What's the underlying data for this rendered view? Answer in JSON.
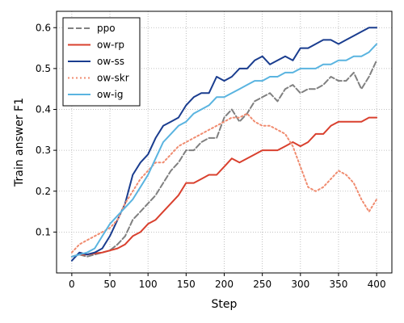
{
  "chart_data": {
    "type": "line",
    "title": "",
    "xlabel": "Step",
    "ylabel": "Train answer F1",
    "xlim": [
      -20,
      420
    ],
    "ylim": [
      0.0,
      0.64
    ],
    "xticks": [
      0,
      50,
      100,
      150,
      200,
      250,
      300,
      350,
      400
    ],
    "yticks": [
      0.1,
      0.2,
      0.3,
      0.4,
      0.5,
      0.6
    ],
    "grid": true,
    "legend_position": "top-left",
    "series": [
      {
        "name": "ppo",
        "color": "#808080",
        "style": "dashed",
        "x": [
          0,
          10,
          20,
          30,
          40,
          50,
          60,
          70,
          80,
          90,
          100,
          110,
          120,
          130,
          140,
          150,
          160,
          170,
          180,
          190,
          200,
          210,
          220,
          230,
          240,
          250,
          260,
          270,
          280,
          290,
          300,
          310,
          320,
          330,
          340,
          350,
          360,
          370,
          380,
          390,
          400
        ],
        "y": [
          0.04,
          0.045,
          0.04,
          0.045,
          0.05,
          0.055,
          0.07,
          0.09,
          0.13,
          0.15,
          0.17,
          0.19,
          0.22,
          0.25,
          0.27,
          0.3,
          0.3,
          0.32,
          0.33,
          0.33,
          0.38,
          0.4,
          0.37,
          0.39,
          0.42,
          0.43,
          0.44,
          0.42,
          0.45,
          0.46,
          0.44,
          0.45,
          0.45,
          0.46,
          0.48,
          0.47,
          0.47,
          0.49,
          0.45,
          0.48,
          0.52
        ]
      },
      {
        "name": "ow-rp",
        "color": "#d9402e",
        "style": "solid",
        "x": [
          0,
          10,
          20,
          30,
          40,
          50,
          60,
          70,
          80,
          90,
          100,
          110,
          120,
          130,
          140,
          150,
          160,
          170,
          180,
          190,
          200,
          210,
          220,
          230,
          240,
          250,
          260,
          270,
          280,
          290,
          300,
          310,
          320,
          330,
          340,
          350,
          360,
          370,
          380,
          390,
          400
        ],
        "y": [
          0.04,
          0.045,
          0.045,
          0.048,
          0.05,
          0.055,
          0.06,
          0.07,
          0.09,
          0.1,
          0.12,
          0.13,
          0.15,
          0.17,
          0.19,
          0.22,
          0.22,
          0.23,
          0.24,
          0.24,
          0.26,
          0.28,
          0.27,
          0.28,
          0.29,
          0.3,
          0.3,
          0.3,
          0.31,
          0.32,
          0.31,
          0.32,
          0.34,
          0.34,
          0.36,
          0.37,
          0.37,
          0.37,
          0.37,
          0.38,
          0.38
        ]
      },
      {
        "name": "ow-ss",
        "color": "#1a3d8f",
        "style": "solid",
        "x": [
          0,
          10,
          20,
          30,
          40,
          50,
          60,
          70,
          80,
          90,
          100,
          110,
          120,
          130,
          140,
          150,
          160,
          170,
          180,
          190,
          200,
          210,
          220,
          230,
          240,
          250,
          260,
          270,
          280,
          290,
          300,
          310,
          320,
          330,
          340,
          350,
          360,
          370,
          380,
          390,
          400
        ],
        "y": [
          0.03,
          0.05,
          0.045,
          0.05,
          0.06,
          0.09,
          0.13,
          0.17,
          0.24,
          0.27,
          0.29,
          0.33,
          0.36,
          0.37,
          0.38,
          0.41,
          0.43,
          0.44,
          0.44,
          0.48,
          0.47,
          0.48,
          0.5,
          0.5,
          0.52,
          0.53,
          0.51,
          0.52,
          0.53,
          0.52,
          0.55,
          0.55,
          0.56,
          0.57,
          0.57,
          0.56,
          0.57,
          0.58,
          0.59,
          0.6,
          0.6
        ]
      },
      {
        "name": "ow-skr",
        "color": "#f08c70",
        "style": "dotted",
        "x": [
          0,
          10,
          20,
          30,
          40,
          50,
          60,
          70,
          80,
          90,
          100,
          110,
          120,
          130,
          140,
          150,
          160,
          170,
          180,
          190,
          200,
          210,
          220,
          230,
          240,
          250,
          260,
          270,
          280,
          290,
          300,
          310,
          320,
          330,
          340,
          350,
          360,
          370,
          380,
          390,
          400
        ],
        "y": [
          0.05,
          0.07,
          0.08,
          0.09,
          0.1,
          0.11,
          0.13,
          0.17,
          0.2,
          0.23,
          0.25,
          0.27,
          0.27,
          0.29,
          0.31,
          0.32,
          0.33,
          0.34,
          0.35,
          0.36,
          0.37,
          0.38,
          0.38,
          0.39,
          0.37,
          0.36,
          0.36,
          0.35,
          0.34,
          0.31,
          0.26,
          0.21,
          0.2,
          0.21,
          0.23,
          0.25,
          0.24,
          0.22,
          0.18,
          0.15,
          0.18
        ]
      },
      {
        "name": "ow-ig",
        "color": "#5ab4e0",
        "style": "solid",
        "x": [
          0,
          10,
          20,
          30,
          40,
          50,
          60,
          70,
          80,
          90,
          100,
          110,
          120,
          130,
          140,
          150,
          160,
          170,
          180,
          190,
          200,
          210,
          220,
          230,
          240,
          250,
          260,
          270,
          280,
          290,
          300,
          310,
          320,
          330,
          340,
          350,
          360,
          370,
          380,
          390,
          400
        ],
        "y": [
          0.04,
          0.045,
          0.05,
          0.06,
          0.09,
          0.12,
          0.14,
          0.16,
          0.18,
          0.21,
          0.24,
          0.28,
          0.32,
          0.34,
          0.36,
          0.37,
          0.39,
          0.4,
          0.41,
          0.43,
          0.43,
          0.44,
          0.45,
          0.46,
          0.47,
          0.47,
          0.48,
          0.48,
          0.49,
          0.49,
          0.5,
          0.5,
          0.5,
          0.51,
          0.51,
          0.52,
          0.52,
          0.53,
          0.53,
          0.54,
          0.56
        ]
      }
    ]
  }
}
